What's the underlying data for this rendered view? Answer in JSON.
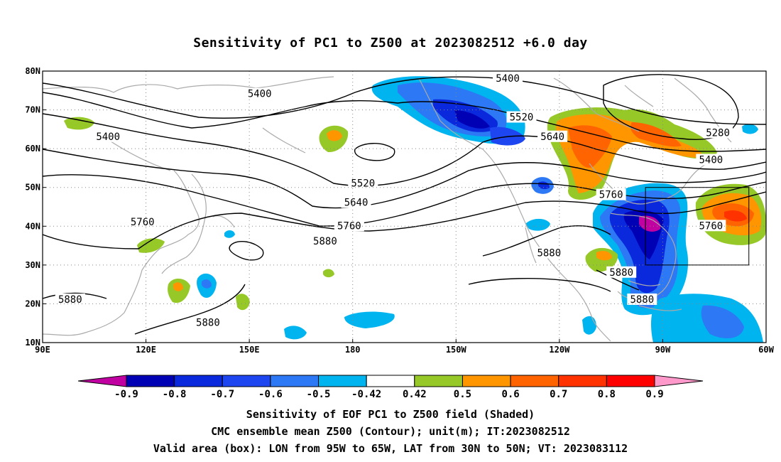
{
  "title": "Sensitivity of PC1 to Z500 at 2023082512 +6.0 day",
  "map": {
    "lon_range": [
      90,
      300
    ],
    "lat_range": [
      10,
      80
    ],
    "lon_ticks": [
      {
        "lon": 90,
        "label": "90E"
      },
      {
        "lon": 120,
        "label": "120E"
      },
      {
        "lon": 150,
        "label": "150E"
      },
      {
        "lon": 180,
        "label": "180"
      },
      {
        "lon": 210,
        "label": "150W"
      },
      {
        "lon": 240,
        "label": "120W"
      },
      {
        "lon": 270,
        "label": "90W"
      },
      {
        "lon": 300,
        "label": "60W"
      }
    ],
    "lat_ticks": [
      {
        "lat": 80,
        "label": "80N"
      },
      {
        "lat": 70,
        "label": "70N"
      },
      {
        "lat": 60,
        "label": "60N"
      },
      {
        "lat": 50,
        "label": "50N"
      },
      {
        "lat": 40,
        "label": "40N"
      },
      {
        "lat": 30,
        "label": "30N"
      },
      {
        "lat": 20,
        "label": "20N"
      },
      {
        "lat": 10,
        "label": "10N"
      }
    ],
    "valid_box": {
      "lon_w": 265,
      "lon_e": 295,
      "lat_s": 30,
      "lat_n": 50
    },
    "contour_labels": [
      {
        "text": "5400",
        "lon": 153,
        "lat": 74
      },
      {
        "text": "5400",
        "lon": 109,
        "lat": 63
      },
      {
        "text": "5520",
        "lon": 229,
        "lat": 68
      },
      {
        "text": "5520",
        "lon": 183,
        "lat": 51
      },
      {
        "text": "5640",
        "lon": 238,
        "lat": 63
      },
      {
        "text": "5640",
        "lon": 181,
        "lat": 46
      },
      {
        "text": "5760",
        "lon": 119,
        "lat": 41
      },
      {
        "text": "5760",
        "lon": 179,
        "lat": 40
      },
      {
        "text": "5760",
        "lon": 255,
        "lat": 48
      },
      {
        "text": "5760",
        "lon": 284,
        "lat": 40
      },
      {
        "text": "5880",
        "lon": 172,
        "lat": 36
      },
      {
        "text": "5880",
        "lon": 237,
        "lat": 33
      },
      {
        "text": "5880",
        "lon": 258,
        "lat": 28
      },
      {
        "text": "5880",
        "lon": 264,
        "lat": 21
      },
      {
        "text": "5880",
        "lon": 138,
        "lat": 15
      },
      {
        "text": "5880",
        "lon": 98,
        "lat": 21
      },
      {
        "text": "5400",
        "lon": 225,
        "lat": 78
      },
      {
        "text": "5280",
        "lon": 286,
        "lat": 64
      },
      {
        "text": "5400",
        "lon": 284,
        "lat": 57
      }
    ]
  },
  "colorbar": {
    "colors": [
      "#c000a0",
      "#0000b4",
      "#0a28dc",
      "#1e46f0",
      "#2d78f5",
      "#00b4f0",
      "#ffffff",
      "#96c828",
      "#ff9600",
      "#ff6400",
      "#ff3200",
      "#ff0000",
      "#ff99cc"
    ],
    "labels": [
      "-0.9",
      "-0.8",
      "-0.7",
      "-0.6",
      "-0.5",
      "-0.42",
      "0.42",
      "0.5",
      "0.6",
      "0.7",
      "0.8",
      "0.9"
    ]
  },
  "footer": {
    "line1": "Sensitivity of EOF PC1 to Z500 field (Shaded)",
    "line2": "CMC ensemble mean Z500 (Contour); unit(m); IT:2023082512",
    "line3": "Valid area (box): LON from 95W to 65W, LAT from 30N to 50N; VT: 2023083112"
  }
}
